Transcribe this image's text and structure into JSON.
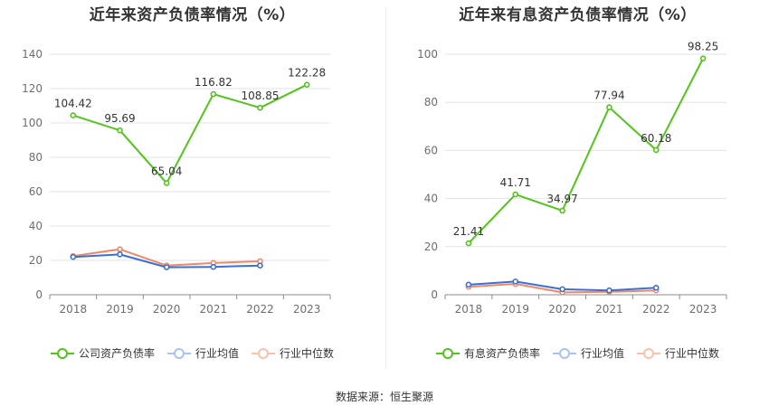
{
  "source": "数据来源：恒生聚源",
  "chart_data": [
    {
      "type": "line",
      "title": "近年来资产负债率情况（%）",
      "categories": [
        "2018",
        "2019",
        "2020",
        "2021",
        "2022",
        "2023"
      ],
      "ylim": [
        0,
        140
      ],
      "yticks": [
        "0",
        "20",
        "40",
        "60",
        "80",
        "100",
        "120",
        "140"
      ],
      "grid": true,
      "legend_position": "bottom",
      "series": [
        {
          "name": "公司资产负债率",
          "color": "#52c41a",
          "values": [
            104.42,
            95.69,
            65.04,
            116.82,
            108.85,
            122.28
          ],
          "labels": [
            "104.42",
            "95.69",
            "65.04",
            "116.82",
            "108.85",
            "122.28"
          ]
        },
        {
          "name": "行业均值",
          "color": "#3a6fd8",
          "values": [
            22.0,
            23.5,
            16.0,
            16.2,
            17.0,
            null
          ],
          "labels": []
        },
        {
          "name": "行业中位数",
          "color": "#f08866",
          "values": [
            22.5,
            26.5,
            17.0,
            18.5,
            19.5,
            null
          ],
          "labels": []
        }
      ]
    },
    {
      "type": "line",
      "title": "近年来有息资产负债率情况（%）",
      "categories": [
        "2018",
        "2019",
        "2020",
        "2021",
        "2022",
        "2023"
      ],
      "ylim": [
        0,
        100
      ],
      "yticks": [
        "0",
        "20",
        "40",
        "60",
        "80",
        "100"
      ],
      "grid": true,
      "legend_position": "bottom",
      "series": [
        {
          "name": "有息资产负债率",
          "color": "#52c41a",
          "values": [
            21.41,
            41.71,
            34.97,
            77.94,
            60.18,
            98.25
          ],
          "labels": [
            "21.41",
            "41.71",
            "34.97",
            "77.94",
            "60.18",
            "98.25"
          ]
        },
        {
          "name": "行业均值",
          "color": "#3a6fd8",
          "values": [
            4.2,
            5.5,
            2.3,
            1.8,
            2.9,
            null
          ],
          "labels": []
        },
        {
          "name": "行业中位数",
          "color": "#f08866",
          "values": [
            3.3,
            4.5,
            1.0,
            1.2,
            1.8,
            null
          ],
          "labels": []
        }
      ]
    }
  ]
}
